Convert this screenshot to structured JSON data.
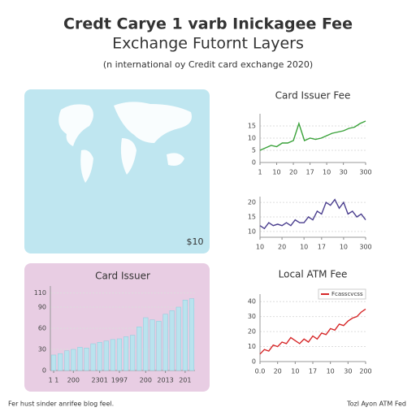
{
  "header": {
    "title": [
      "Credt Carye 1 varb Inickagee Fee",
      "Exchange Futornt Layers"
    ],
    "subtitle": "(n international oy Credit card exchange 2020)"
  },
  "map_panel": {
    "label": "$10"
  },
  "footer": {
    "left": "Fer hust sinder anrifee blog feel.",
    "right": "Tozl Ayon ATM Fed"
  },
  "chart_data": [
    {
      "type": "line",
      "title": "Card Issuer Fee",
      "x": [
        0,
        1,
        2,
        3,
        4,
        5,
        6,
        7,
        8,
        9,
        10,
        11,
        12,
        13,
        14,
        15,
        16,
        17,
        18,
        19
      ],
      "series": [
        {
          "color": "#3aa23a",
          "values": [
            5,
            6,
            7,
            6.5,
            8,
            8,
            9,
            16,
            9,
            10,
            9.5,
            10,
            11,
            12,
            12.5,
            13,
            14,
            14.5,
            16,
            17
          ]
        }
      ],
      "xlim": [
        0,
        19
      ],
      "ylim": [
        0,
        20
      ],
      "yticks": [
        0,
        5,
        10,
        15
      ],
      "xticks": [
        {
          "value": 0,
          "label": "1"
        },
        {
          "value": 3,
          "label": "10"
        },
        {
          "value": 6,
          "label": "20"
        },
        {
          "value": 9,
          "label": "17"
        },
        {
          "value": 12,
          "label": "10"
        },
        {
          "value": 15,
          "label": "30"
        },
        {
          "value": 19,
          "label": "300"
        }
      ],
      "grid": true
    },
    {
      "type": "line",
      "x": [
        0,
        1,
        2,
        3,
        4,
        5,
        6,
        7,
        8,
        9,
        10,
        11,
        12,
        13,
        14,
        15,
        16,
        17,
        18,
        19,
        20,
        21,
        22,
        23,
        24
      ],
      "series": [
        {
          "color": "#4b3f8f",
          "values": [
            12,
            11,
            13,
            12,
            12.5,
            12,
            13,
            12,
            14,
            13,
            13,
            15,
            14,
            17,
            16,
            20,
            19,
            21,
            18,
            20,
            16,
            17,
            15,
            16,
            14
          ]
        }
      ],
      "xlim": [
        0,
        24
      ],
      "ylim": [
        8,
        22
      ],
      "yticks": [
        10,
        15,
        20
      ],
      "xticks": [
        {
          "value": 0,
          "label": "10"
        },
        {
          "value": 5,
          "label": "20"
        },
        {
          "value": 10,
          "label": "10"
        },
        {
          "value": 14,
          "label": "17"
        },
        {
          "value": 19,
          "label": "10"
        },
        {
          "value": 24,
          "label": "300"
        }
      ],
      "grid": true
    },
    {
      "type": "line",
      "title": "Local ATM Fee",
      "x": [
        0,
        1,
        2,
        3,
        4,
        5,
        6,
        7,
        8,
        9,
        10,
        11,
        12,
        13,
        14,
        15,
        16,
        17,
        18,
        19,
        20,
        21,
        22,
        23,
        24
      ],
      "series": [
        {
          "name": "Fcasscvcss",
          "color": "#d62728",
          "values": [
            5,
            8,
            7,
            11,
            10,
            13,
            12,
            16,
            14,
            12,
            15,
            13,
            17,
            15,
            19,
            18,
            22,
            21,
            25,
            24,
            27,
            29,
            30,
            33,
            35
          ]
        }
      ],
      "xlim": [
        0,
        24
      ],
      "ylim": [
        0,
        45
      ],
      "yticks": [
        0,
        10,
        20,
        30,
        40
      ],
      "xticks": [
        {
          "value": 0,
          "label": "0.0"
        },
        {
          "value": 4,
          "label": "20"
        },
        {
          "value": 8,
          "label": "10"
        },
        {
          "value": 12,
          "label": "17"
        },
        {
          "value": 16,
          "label": "10"
        },
        {
          "value": 20,
          "label": "30"
        },
        {
          "value": 24,
          "label": "200"
        }
      ],
      "legend": "upper right",
      "grid": true
    },
    {
      "type": "bar",
      "title": "Card Issuer",
      "x": [
        1,
        2,
        3,
        4,
        5,
        6,
        7,
        8,
        9,
        10,
        11,
        12,
        13,
        14,
        15,
        16,
        17,
        18,
        19,
        20,
        21,
        22
      ],
      "series": [
        {
          "color": "#b9e3ee",
          "values": [
            22,
            24,
            28,
            30,
            33,
            32,
            38,
            40,
            42,
            44,
            45,
            48,
            50,
            62,
            75,
            72,
            70,
            80,
            85,
            90,
            100,
            102
          ]
        }
      ],
      "xlim": [
        0.5,
        22.5
      ],
      "ylim": [
        0,
        120
      ],
      "yticks": [
        0,
        30,
        60,
        90,
        110
      ],
      "xticks": [
        {
          "value": 1,
          "label": "1 1"
        },
        {
          "value": 4,
          "label": "200"
        },
        {
          "value": 8,
          "label": "2301"
        },
        {
          "value": 11,
          "label": "1997"
        },
        {
          "value": 15,
          "label": "200"
        },
        {
          "value": 18,
          "label": "2013"
        },
        {
          "value": 21,
          "label": "201"
        }
      ],
      "grid": true
    }
  ]
}
